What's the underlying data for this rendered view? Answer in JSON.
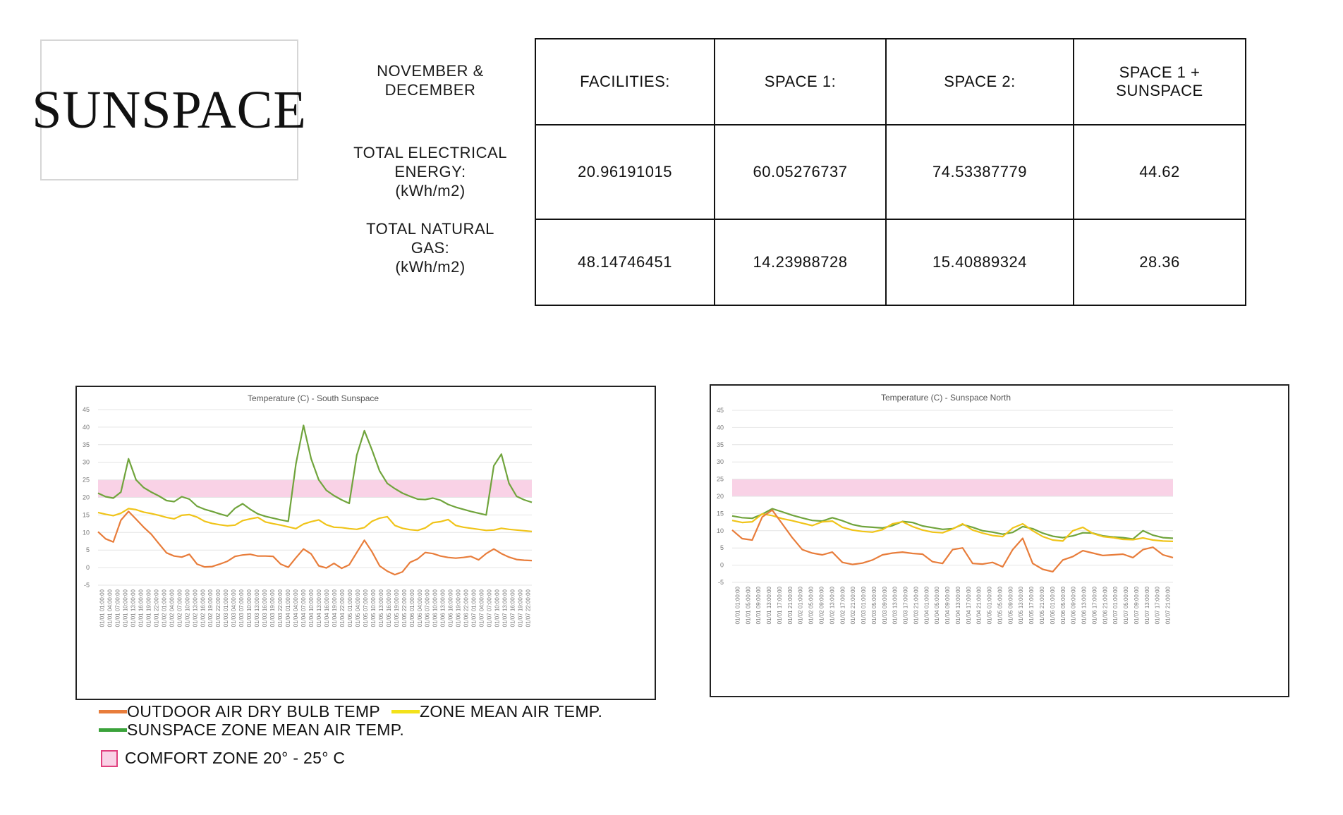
{
  "logo": {
    "text": "SUNSPACE"
  },
  "table": {
    "period_label": [
      "NOVEMBER &",
      "DECEMBER"
    ],
    "electric_label": [
      "TOTAL ELECTRICAL",
      "ENERGY:",
      "(kWh/m2)"
    ],
    "gas_label": [
      "TOTAL NATURAL",
      "GAS:",
      "(kWh/m2)"
    ],
    "columns": [
      {
        "header": [
          "FACILITIES:"
        ],
        "electric": "20.96191015",
        "gas": "48.14746451"
      },
      {
        "header": [
          "SPACE 1:"
        ],
        "electric": "60.05276737",
        "gas": "14.23988728"
      },
      {
        "header": [
          "SPACE 2:"
        ],
        "electric": "74.53387779",
        "gas": "15.40889324"
      },
      {
        "header": [
          "SPACE 1 +",
          "SUNSPACE"
        ],
        "electric": "44.62",
        "gas": "28.36"
      }
    ],
    "highlight_color": "#3a9a3a"
  },
  "legend": {
    "outdoor": "OUTDOOR AIR DRY BULB TEMP",
    "zone": "ZONE MEAN AIR TEMP.",
    "sunspace": "SUNSPACE ZONE MEAN AIR TEMP.",
    "comfort": "COMFORT ZONE 20° - 25° C"
  },
  "chart_data": [
    {
      "type": "line",
      "title": "Temperature  (C) - South Sunspace",
      "ylim": [
        -5,
        45
      ],
      "yticks": [
        -5,
        0,
        5,
        10,
        15,
        20,
        25,
        30,
        35,
        40,
        45
      ],
      "comfort_band": [
        20,
        25
      ],
      "grid": true,
      "x_tick_labels": [
        "01/01 01:00:00",
        "01/01 04:00:00",
        "01/01 07:00:00",
        "01/01 10:00:00",
        "01/01 13:00:00",
        "01/01 16:00:00",
        "01/01 19:00:00",
        "01/01 22:00:00",
        "01/02 01:00:00",
        "01/02 04:00:00",
        "01/02 07:00:00",
        "01/02 10:00:00",
        "01/02 13:00:00",
        "01/02 16:00:00",
        "01/02 19:00:00",
        "01/02 22:00:00",
        "01/03 01:00:00",
        "01/03 04:00:00",
        "01/03 07:00:00",
        "01/03 10:00:00",
        "01/03 13:00:00",
        "01/03 16:00:00",
        "01/03 19:00:00",
        "01/03 22:00:00",
        "01/04 01:00:00",
        "01/04 04:00:00",
        "01/04 07:00:00",
        "01/04 10:00:00",
        "01/04 13:00:00",
        "01/04 16:00:00",
        "01/04 19:00:00",
        "01/04 22:00:00",
        "01/05 01:00:00",
        "01/05 04:00:00",
        "01/05 07:00:00",
        "01/05 10:00:00",
        "01/05 13:00:00",
        "01/05 16:00:00",
        "01/05 19:00:00",
        "01/05 22:00:00",
        "01/06 01:00:00",
        "01/06 04:00:00",
        "01/06 07:00:00",
        "01/06 10:00:00",
        "01/06 13:00:00",
        "01/06 16:00:00",
        "01/06 19:00:00",
        "01/06 22:00:00",
        "01/07 01:00:00",
        "01/07 04:00:00",
        "01/07 07:00:00",
        "01/07 10:00:00",
        "01/07 13:00:00",
        "01/07 16:00:00",
        "01/07 19:00:00",
        "01/07 22:00:00"
      ],
      "series": [
        {
          "key": "sunspace",
          "color": "#70a43c",
          "values": [
            21.2,
            20.2,
            19.8,
            21.5,
            31.0,
            25.0,
            22.8,
            21.5,
            20.4,
            19.1,
            18.8,
            20.2,
            19.5,
            17.5,
            16.6,
            16.0,
            15.3,
            14.7,
            16.9,
            18.2,
            16.6,
            15.3,
            14.6,
            14.1,
            13.6,
            13.2,
            29.5,
            40.5,
            31.0,
            25.0,
            22.0,
            20.5,
            19.3,
            18.3,
            32.0,
            39.0,
            33.5,
            27.5,
            24.0,
            22.5,
            21.2,
            20.3,
            19.5,
            19.4,
            19.8,
            19.2,
            18.0,
            17.2,
            16.6,
            16.0,
            15.5,
            15.0,
            29.0,
            32.3,
            24.0,
            20.3,
            19.3,
            18.6
          ]
        },
        {
          "key": "zone",
          "color": "#f0c419",
          "values": [
            15.7,
            15.2,
            14.8,
            15.5,
            16.8,
            16.5,
            15.8,
            15.4,
            14.9,
            14.3,
            13.9,
            14.9,
            15.1,
            14.4,
            13.2,
            12.6,
            12.2,
            11.9,
            12.1,
            13.4,
            13.9,
            14.3,
            13.0,
            12.5,
            12.1,
            11.6,
            11.1,
            12.4,
            13.1,
            13.6,
            12.2,
            11.5,
            11.4,
            11.1,
            10.9,
            11.4,
            13.2,
            14.1,
            14.5,
            12.0,
            11.2,
            10.8,
            10.6,
            11.3,
            12.8,
            13.1,
            13.7,
            12.0,
            11.5,
            11.2,
            10.9,
            10.6,
            10.7,
            11.2,
            10.9,
            10.7,
            10.5,
            10.3
          ]
        },
        {
          "key": "outdoor",
          "color": "#e87d3b",
          "values": [
            10.2,
            8.2,
            7.3,
            13.5,
            16.0,
            13.8,
            11.5,
            9.5,
            6.8,
            4.2,
            3.3,
            3.0,
            3.8,
            1.0,
            0.2,
            0.3,
            1.0,
            1.8,
            3.2,
            3.6,
            3.8,
            3.3,
            3.3,
            3.2,
            1.0,
            0.1,
            2.8,
            5.3,
            3.9,
            0.5,
            -0.1,
            1.2,
            -0.2,
            0.8,
            4.3,
            7.8,
            4.5,
            0.5,
            -1.0,
            -2.0,
            -1.2,
            1.5,
            2.5,
            4.3,
            4.0,
            3.3,
            2.9,
            2.7,
            2.9,
            3.2,
            2.2,
            4.0,
            5.3,
            4.0,
            3.0,
            2.3,
            2.1,
            2.0
          ]
        }
      ]
    },
    {
      "type": "line",
      "title": "Temperature  (C) - Sunspace North",
      "ylim": [
        -5,
        45
      ],
      "yticks": [
        -5,
        0,
        5,
        10,
        15,
        20,
        25,
        30,
        35,
        40,
        45
      ],
      "comfort_band": [
        20,
        25
      ],
      "grid": true,
      "x_tick_labels": [
        "01/01 01:00:00",
        "01/01 05:00:00",
        "01/01 09:00:00",
        "01/01 13:00:00",
        "01/01 17:00:00",
        "01/01 21:00:00",
        "01/02 01:00:00",
        "01/02 05:00:00",
        "01/02 09:00:00",
        "01/02 13:00:00",
        "01/02 17:00:00",
        "01/02 21:00:00",
        "01/03 01:00:00",
        "01/03 05:00:00",
        "01/03 09:00:00",
        "01/03 13:00:00",
        "01/03 17:00:00",
        "01/03 21:00:00",
        "01/04 01:00:00",
        "01/04 05:00:00",
        "01/04 09:00:00",
        "01/04 13:00:00",
        "01/04 17:00:00",
        "01/04 21:00:00",
        "01/05 01:00:00",
        "01/05 05:00:00",
        "01/05 09:00:00",
        "01/05 13:00:00",
        "01/05 17:00:00",
        "01/05 21:00:00",
        "01/06 01:00:00",
        "01/06 05:00:00",
        "01/06 09:00:00",
        "01/06 13:00:00",
        "01/06 17:00:00",
        "01/06 21:00:00",
        "01/07 01:00:00",
        "01/07 05:00:00",
        "01/07 09:00:00",
        "01/07 13:00:00",
        "01/07 17:00:00",
        "01/07 21:00:00"
      ],
      "series": [
        {
          "key": "sunspace",
          "color": "#70a43c",
          "values": [
            14.3,
            13.8,
            13.6,
            14.8,
            16.4,
            15.5,
            14.5,
            13.7,
            13.0,
            12.8,
            13.8,
            12.9,
            11.8,
            11.2,
            11.0,
            10.8,
            11.5,
            12.7,
            12.4,
            11.4,
            10.9,
            10.4,
            10.6,
            11.8,
            11.0,
            10.0,
            9.6,
            9.0,
            9.5,
            11.2,
            10.6,
            9.3,
            8.4,
            8.0,
            8.5,
            9.4,
            9.3,
            8.5,
            8.2,
            8.0,
            7.6,
            10.0,
            8.7,
            8.0,
            7.8
          ]
        },
        {
          "key": "zone",
          "color": "#f0c419",
          "values": [
            13.0,
            12.4,
            12.6,
            14.9,
            14.4,
            13.5,
            12.9,
            12.2,
            11.5,
            12.6,
            12.8,
            11.0,
            10.2,
            9.8,
            9.6,
            10.3,
            12.0,
            12.6,
            11.2,
            10.2,
            9.6,
            9.4,
            10.5,
            12.0,
            10.2,
            9.3,
            8.6,
            8.3,
            10.8,
            12.0,
            10.0,
            8.3,
            7.3,
            7.0,
            10.0,
            11.0,
            9.2,
            8.3,
            8.0,
            7.5,
            7.4,
            7.9,
            7.3,
            7.0,
            6.9
          ]
        },
        {
          "key": "outdoor",
          "color": "#e87d3b",
          "values": [
            10.2,
            7.7,
            7.3,
            14.0,
            16.0,
            12.0,
            8.0,
            4.5,
            3.5,
            3.0,
            3.8,
            0.8,
            0.2,
            0.6,
            1.5,
            3.0,
            3.5,
            3.8,
            3.4,
            3.2,
            1.0,
            0.5,
            4.5,
            5.0,
            0.5,
            0.3,
            0.8,
            -0.5,
            4.5,
            7.8,
            0.5,
            -1.2,
            -1.9,
            1.5,
            2.5,
            4.2,
            3.5,
            2.8,
            3.0,
            3.2,
            2.2,
            4.5,
            5.2,
            3.0,
            2.2
          ]
        }
      ]
    }
  ]
}
